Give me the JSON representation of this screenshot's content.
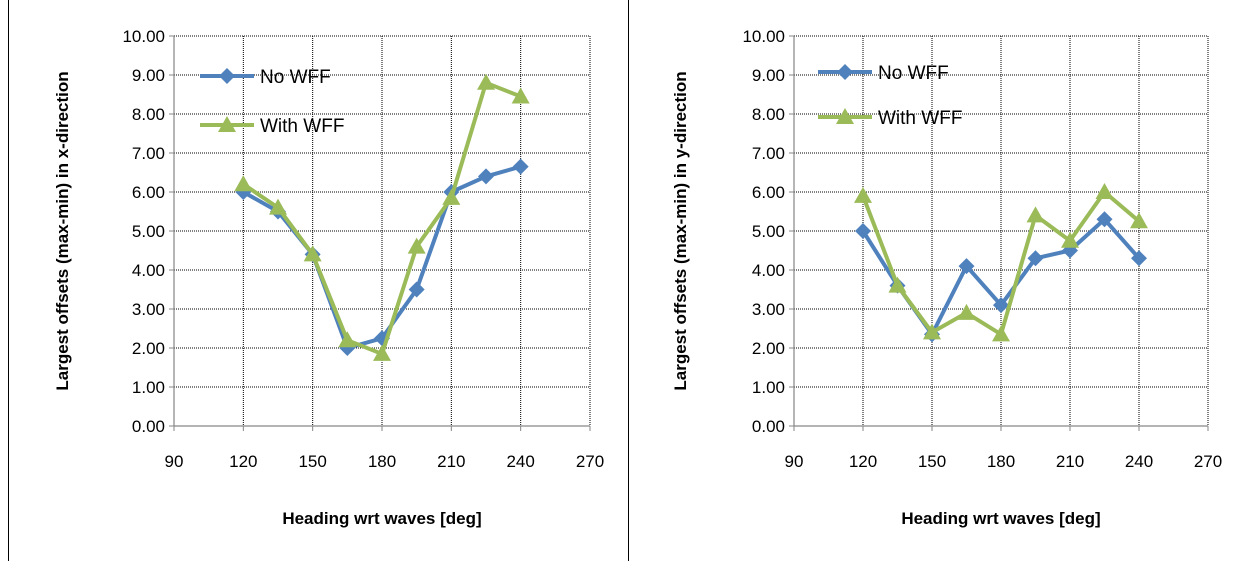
{
  "colors": {
    "no_wff": "#4f81bd",
    "with_wff": "#9bbb59",
    "grid": "#000000",
    "axis": "#868686"
  },
  "chart_data": [
    {
      "type": "line",
      "title": "",
      "xlabel": "Heading wrt waves [deg]",
      "ylabel": "Largest offsets (max-min) in x-direction",
      "xlim": [
        90,
        270
      ],
      "ylim": [
        0,
        10
      ],
      "xticks": [
        "90",
        "120",
        "150",
        "180",
        "210",
        "240",
        "270"
      ],
      "yticks": [
        "0.00",
        "1.00",
        "2.00",
        "3.00",
        "4.00",
        "5.00",
        "6.00",
        "7.00",
        "8.00",
        "9.00",
        "10.00"
      ],
      "grid": true,
      "legend": "top-left",
      "x": [
        120,
        135,
        150,
        165,
        180,
        195,
        210,
        225,
        240
      ],
      "series": [
        {
          "name": "No WFF",
          "marker": "diamond",
          "values": [
            6.0,
            5.5,
            4.4,
            2.0,
            2.25,
            3.5,
            6.0,
            6.4,
            6.65
          ]
        },
        {
          "name": "With WFF",
          "marker": "triangle",
          "values": [
            6.2,
            5.6,
            4.4,
            2.2,
            1.85,
            4.6,
            5.85,
            8.8,
            8.45
          ]
        }
      ]
    },
    {
      "type": "line",
      "title": "",
      "xlabel": "Heading wrt waves [deg]",
      "ylabel": "Largest offsets (max-min) in y-direction",
      "xlim": [
        90,
        270
      ],
      "ylim": [
        0,
        10
      ],
      "xticks": [
        "90",
        "120",
        "150",
        "180",
        "210",
        "240",
        "270"
      ],
      "yticks": [
        "0.00",
        "1.00",
        "2.00",
        "3.00",
        "4.00",
        "5.00",
        "6.00",
        "7.00",
        "8.00",
        "9.00",
        "10.00"
      ],
      "grid": true,
      "legend": "top-left",
      "x": [
        120,
        135,
        150,
        165,
        180,
        195,
        210,
        225,
        240
      ],
      "series": [
        {
          "name": "No WFF",
          "marker": "diamond",
          "values": [
            5.0,
            3.6,
            2.35,
            4.1,
            3.1,
            4.3,
            4.5,
            5.3,
            4.3
          ]
        },
        {
          "name": "With WFF",
          "marker": "triangle",
          "values": [
            5.9,
            3.6,
            2.4,
            2.9,
            2.35,
            5.4,
            4.75,
            6.0,
            5.25
          ]
        }
      ]
    }
  ]
}
